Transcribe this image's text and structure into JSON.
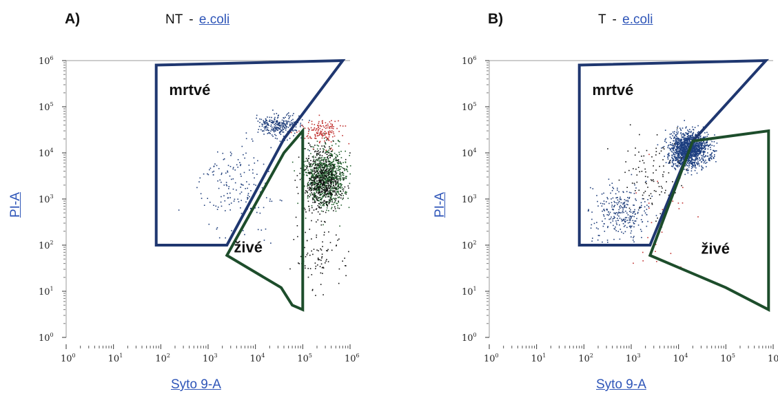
{
  "chart_data": [
    {
      "type": "scatter",
      "panel_label": "A)",
      "title_prefix": "NT",
      "title_separator": "-",
      "title_link": "e.coli",
      "xlabel": "Syto 9-A",
      "ylabel": "PI-A",
      "x_scale": "log",
      "y_scale": "log",
      "xlim": [
        1,
        1000000
      ],
      "ylim": [
        1,
        1000000
      ],
      "x_ticks": [
        {
          "base": "10",
          "exp": "0"
        },
        {
          "base": "10",
          "exp": "1"
        },
        {
          "base": "10",
          "exp": "2"
        },
        {
          "base": "10",
          "exp": "3"
        },
        {
          "base": "10",
          "exp": "4"
        },
        {
          "base": "10",
          "exp": "5"
        },
        {
          "base": "10",
          "exp": "6"
        }
      ],
      "y_ticks": [
        {
          "base": "10",
          "exp": "0"
        },
        {
          "base": "10",
          "exp": "1"
        },
        {
          "base": "10",
          "exp": "2"
        },
        {
          "base": "10",
          "exp": "3"
        },
        {
          "base": "10",
          "exp": "4"
        },
        {
          "base": "10",
          "exp": "5"
        },
        {
          "base": "10",
          "exp": "6"
        }
      ],
      "gates": [
        {
          "label": "mrtvé",
          "color": "#1f3770",
          "polygon": [
            [
              80,
              800000
            ],
            [
              700000,
              1000000
            ],
            [
              40000,
              20000
            ],
            [
              2500,
              100
            ],
            [
              80,
              100
            ]
          ],
          "label_at": [
            150,
            180000
          ]
        },
        {
          "label": "živé",
          "color": "#1d4d2b",
          "polygon": [
            [
              2500,
              60
            ],
            [
              40000,
              10000
            ],
            [
              100000,
              30000
            ],
            [
              100000,
              4
            ],
            [
              60000,
              5
            ],
            [
              35000,
              12
            ],
            [
              2500,
              60
            ]
          ],
          "label_at": [
            3500,
            70
          ]
        }
      ],
      "populations": [
        {
          "name": "dead-dense",
          "color": "#1e3d7a",
          "n": 260,
          "cx": 30000,
          "cy": 40000,
          "sx": 0.22,
          "sy": 0.13
        },
        {
          "name": "dead-scatter",
          "color": "#1e3d7a",
          "n": 170,
          "cx": 4000,
          "cy": 2000,
          "sx": 0.45,
          "sy": 0.45
        },
        {
          "name": "live-dense",
          "color": "#1f5c2a",
          "n": 900,
          "cx": 300000,
          "cy": 3000,
          "sx": 0.22,
          "sy": 0.3
        },
        {
          "name": "live-core",
          "color": "#111111",
          "n": 500,
          "cx": 250000,
          "cy": 2500,
          "sx": 0.2,
          "sy": 0.35
        },
        {
          "name": "live-tail",
          "color": "#111111",
          "n": 90,
          "cx": 200000,
          "cy": 60,
          "sx": 0.25,
          "sy": 0.35
        },
        {
          "name": "red-border",
          "color": "#c0302e",
          "n": 150,
          "cx": 250000,
          "cy": 30000,
          "sx": 0.22,
          "sy": 0.14
        }
      ]
    },
    {
      "type": "scatter",
      "panel_label": "B)",
      "title_prefix": "T",
      "title_separator": "-",
      "title_link": "e.coli",
      "xlabel": "Syto 9-A",
      "ylabel": "PI-A",
      "x_scale": "log",
      "y_scale": "log",
      "xlim": [
        1,
        1000000
      ],
      "ylim": [
        1,
        1000000
      ],
      "x_ticks": [
        {
          "base": "10",
          "exp": "0"
        },
        {
          "base": "10",
          "exp": "1"
        },
        {
          "base": "10",
          "exp": "2"
        },
        {
          "base": "10",
          "exp": "3"
        },
        {
          "base": "10",
          "exp": "4"
        },
        {
          "base": "10",
          "exp": "5"
        },
        {
          "base": "10",
          "exp": "6"
        }
      ],
      "y_ticks": [
        {
          "base": "10",
          "exp": "0"
        },
        {
          "base": "10",
          "exp": "1"
        },
        {
          "base": "10",
          "exp": "2"
        },
        {
          "base": "10",
          "exp": "3"
        },
        {
          "base": "10",
          "exp": "4"
        },
        {
          "base": "10",
          "exp": "5"
        },
        {
          "base": "10",
          "exp": "6"
        }
      ],
      "gates": [
        {
          "label": "mrtvé",
          "color": "#1f3770",
          "polygon": [
            [
              80,
              800000
            ],
            [
              700000,
              1000000
            ],
            [
              20000,
              18000
            ],
            [
              2500,
              100
            ],
            [
              80,
              100
            ]
          ],
          "label_at": [
            150,
            180000
          ]
        },
        {
          "label": "živé",
          "color": "#1d4d2b",
          "polygon": [
            [
              2500,
              60
            ],
            [
              20000,
              18000
            ],
            [
              800000,
              30000
            ],
            [
              800000,
              4
            ],
            [
              100000,
              12
            ],
            [
              2500,
              60
            ]
          ],
          "label_at": [
            30000,
            65
          ]
        }
      ],
      "populations": [
        {
          "name": "dead-dense",
          "color": "#1d3f80",
          "n": 1400,
          "cx": 16000,
          "cy": 12000,
          "sx": 0.2,
          "sy": 0.18
        },
        {
          "name": "dead-scatter",
          "color": "#1e3d7a",
          "n": 280,
          "cx": 600,
          "cy": 500,
          "sx": 0.32,
          "sy": 0.32
        },
        {
          "name": "dead-bridge",
          "color": "#111111",
          "n": 100,
          "cx": 3000,
          "cy": 3000,
          "sx": 0.35,
          "sy": 0.35
        },
        {
          "name": "red-border",
          "color": "#c0302e",
          "n": 25,
          "cx": 4000,
          "cy": 400,
          "sx": 0.45,
          "sy": 0.6
        }
      ]
    }
  ]
}
